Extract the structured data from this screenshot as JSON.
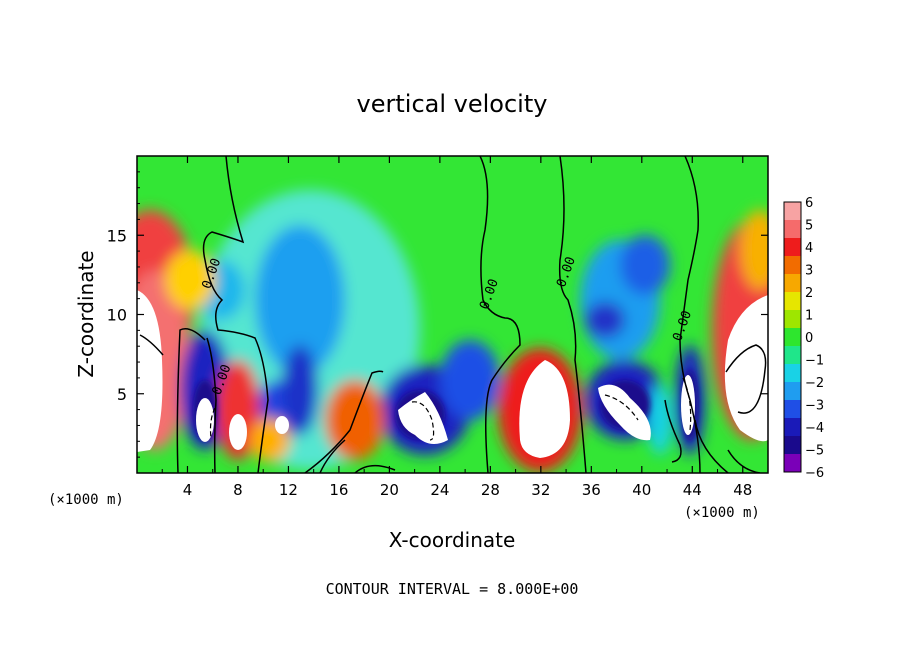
{
  "chart_data": {
    "type": "heatmap",
    "title": "vertical velocity",
    "xlabel": "X-coordinate",
    "ylabel": "Z-coordinate",
    "x_unit_left": "(×1000 m)",
    "x_unit_right": "(×1000 m)",
    "xlim": [
      0,
      50
    ],
    "ylim": [
      0,
      20
    ],
    "x_ticks": [
      "4",
      "8",
      "12",
      "16",
      "20",
      "24",
      "28",
      "32",
      "36",
      "40",
      "44",
      "48"
    ],
    "y_ticks": [
      "5",
      "10",
      "15"
    ],
    "colorbar": {
      "levels": [
        "6",
        "5",
        "4",
        "3",
        "2",
        "1",
        "0",
        "−1",
        "−2",
        "−3",
        "−4",
        "−5",
        "−6"
      ],
      "colors": [
        "#f7a3a3",
        "#f56b6b",
        "#ee1c1c",
        "#f26c00",
        "#f7a800",
        "#e6e600",
        "#9ee600",
        "#2ee62e",
        "#1fe68a",
        "#19d2e6",
        "#1f9df0",
        "#1f4fe6",
        "#1a1ab8",
        "#1a0a8c",
        "#7a00b8"
      ]
    },
    "contour_labels": [
      {
        "text": "0.00",
        "x": 6.2,
        "y": 12.5
      },
      {
        "text": "0.00",
        "x": 7.0,
        "y": 5.8
      },
      {
        "text": "0.00",
        "x": 28.2,
        "y": 11.2
      },
      {
        "text": "0.00",
        "x": 34.3,
        "y": 12.6
      },
      {
        "text": "0.00",
        "x": 43.5,
        "y": 9.2
      }
    ],
    "footer": "CONTOUR INTERVAL = 8.000E+00"
  }
}
